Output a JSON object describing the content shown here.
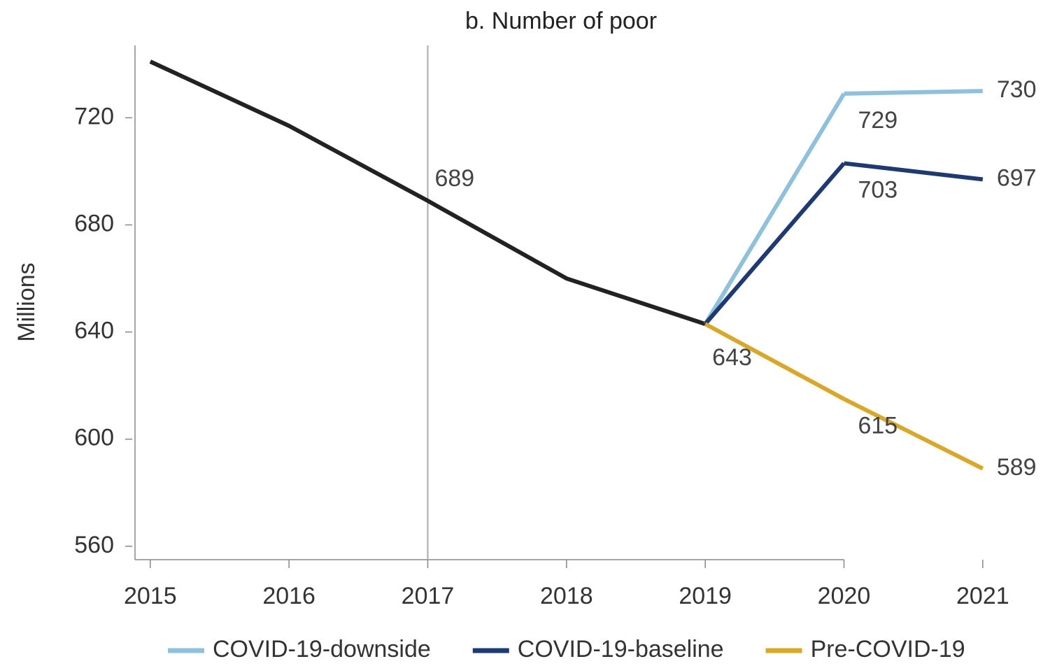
{
  "chart_data": {
    "type": "line",
    "title": "b. Number of poor",
    "y_label": "Millions",
    "x": [
      2015,
      2016,
      2017,
      2018,
      2019,
      2020,
      2021
    ],
    "xlim": [
      2014.89,
      2021.5
    ],
    "xticks": [
      2015,
      2016,
      2017,
      2018,
      2019,
      2020,
      2021
    ],
    "ylim": [
      555,
      747
    ],
    "yticks": [
      560,
      600,
      640,
      680,
      720
    ],
    "marker_line_x": 2017,
    "series": [
      {
        "color": "#222222",
        "values": [
          741,
          717,
          689,
          660,
          643,
          null,
          null
        ],
        "value_labels": [
          null,
          null,
          "689",
          null,
          "643",
          null,
          null
        ]
      },
      {
        "name": "COVID-19-downside",
        "color": "#8fc1dc",
        "values": [
          null,
          null,
          null,
          null,
          null,
          729,
          730
        ],
        "value_labels": [
          null,
          null,
          null,
          null,
          null,
          "729",
          "730"
        ]
      },
      {
        "name": "COVID-19-baseline",
        "color": "#1f3a73",
        "values": [
          null,
          null,
          null,
          null,
          null,
          703,
          697
        ],
        "value_labels": [
          null,
          null,
          null,
          null,
          null,
          "703",
          "697"
        ]
      },
      {
        "name": "Pre-COVID-19",
        "color": "#d9a82a",
        "values": [
          null,
          null,
          null,
          null,
          null,
          615,
          589
        ],
        "value_labels": [
          null,
          null,
          null,
          null,
          null,
          "615",
          "589"
        ]
      }
    ]
  }
}
